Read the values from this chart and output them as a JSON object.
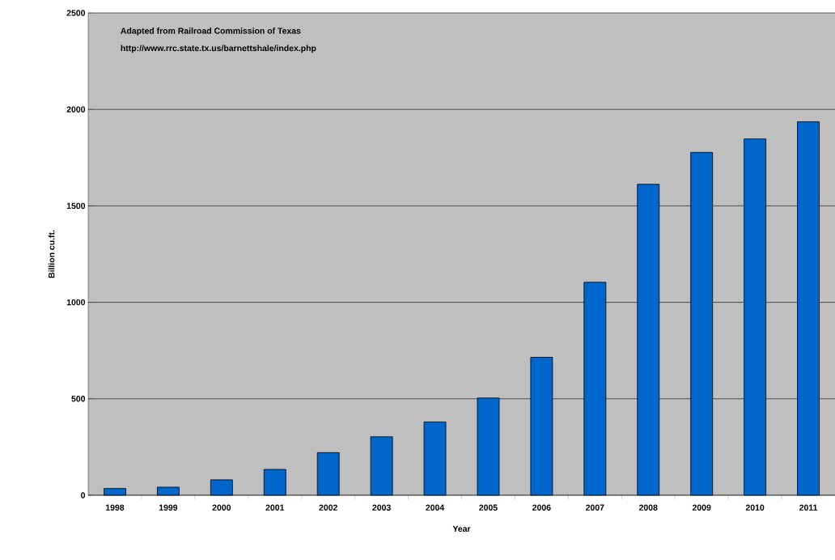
{
  "chart_data": {
    "type": "bar",
    "xlabel": "Year",
    "ylabel": "Billion cu.ft.",
    "annotations": [
      "Adapted from Railroad Commission of Texas",
      "http://www.rrc.state.tx.us/barnettshale/index.php"
    ],
    "categories": [
      "1998",
      "1999",
      "2000",
      "2001",
      "2002",
      "2003",
      "2004",
      "2005",
      "2006",
      "2007",
      "2008",
      "2009",
      "2010",
      "2011"
    ],
    "values": [
      35,
      42,
      80,
      134,
      221,
      303,
      380,
      504,
      715,
      1104,
      1612,
      1777,
      1847,
      1936
    ],
    "color": "#0066cc",
    "ylim": [
      0,
      2500
    ],
    "yticks": [
      0,
      500,
      1000,
      1500,
      2000,
      2500
    ],
    "grid": "y"
  }
}
